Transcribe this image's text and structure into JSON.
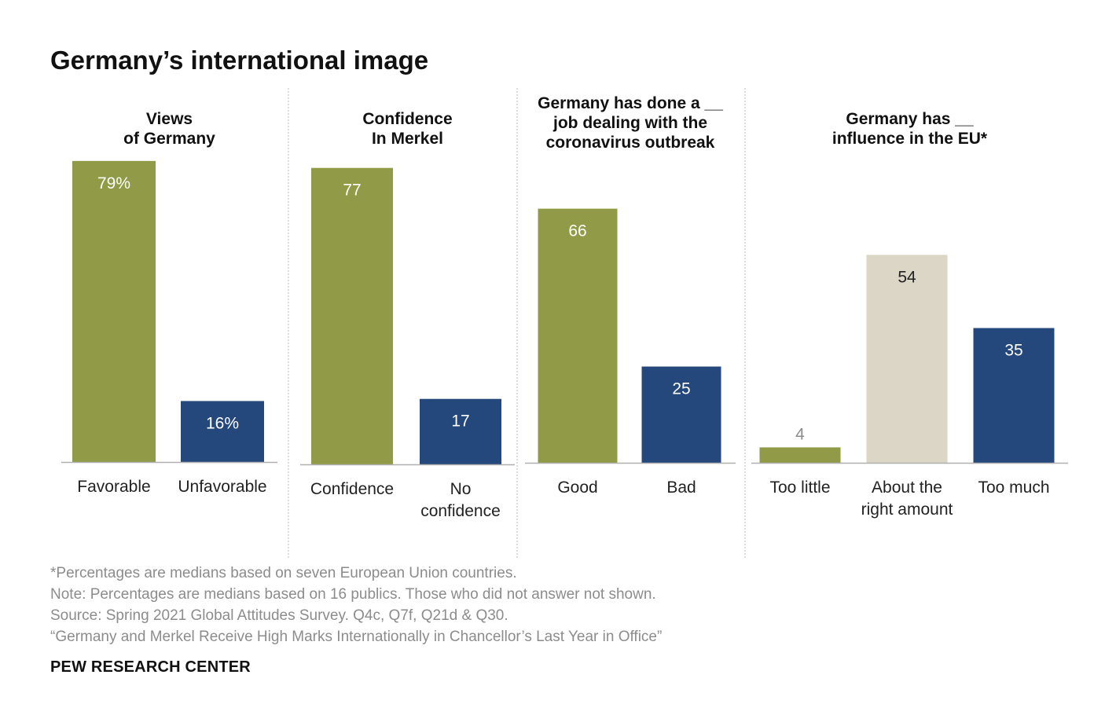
{
  "title": "Germany’s international image",
  "colors": {
    "green": "#919b47",
    "blue": "#24487c",
    "beige": "#dcd6c6",
    "divider": "#bbbbbb",
    "baseline": "#b0b0b0"
  },
  "chart_data": [
    {
      "type": "bar",
      "title_lines": [
        "Views",
        "of Germany"
      ],
      "categories": [
        [
          "Favorable"
        ],
        [
          "Unfavorable"
        ]
      ],
      "values": [
        79,
        16
      ],
      "value_labels": [
        "79%",
        "16%"
      ],
      "colors": [
        "green",
        "blue"
      ]
    },
    {
      "type": "bar",
      "title_lines": [
        "Confidence",
        "In Merkel"
      ],
      "categories": [
        [
          "Confidence"
        ],
        [
          "No",
          "confidence"
        ]
      ],
      "values": [
        77,
        17
      ],
      "value_labels": [
        "77",
        "17"
      ],
      "colors": [
        "green",
        "blue"
      ]
    },
    {
      "type": "bar",
      "title_lines": [
        "Germany has done a __",
        "job dealing with the",
        "coronavirus outbreak"
      ],
      "categories": [
        [
          "Good"
        ],
        [
          "Bad"
        ]
      ],
      "values": [
        66,
        25
      ],
      "value_labels": [
        "66",
        "25"
      ],
      "colors": [
        "green",
        "blue"
      ]
    },
    {
      "type": "bar",
      "title_lines": [
        "Germany has __",
        "influence in the EU*"
      ],
      "categories": [
        [
          "Too little"
        ],
        [
          "About the",
          "right amount"
        ],
        [
          "Too much"
        ]
      ],
      "values": [
        4,
        54,
        35
      ],
      "value_labels": [
        "4",
        "54",
        "35"
      ],
      "colors": [
        "green",
        "beige",
        "blue"
      ]
    }
  ],
  "notes": {
    "line1": "*Percentages are medians based on seven European Union countries.",
    "line2": "Note: Percentages are medians based on 16 publics. Those who did not answer not shown.",
    "line3": "Source: Spring 2021 Global Attitudes Survey. Q4c, Q7f, Q21d & Q30.",
    "line4": "“Germany and Merkel Receive High Marks Internationally in Chancellor’s Last Year in Office”"
  },
  "source_org": "PEW RESEARCH CENTER"
}
